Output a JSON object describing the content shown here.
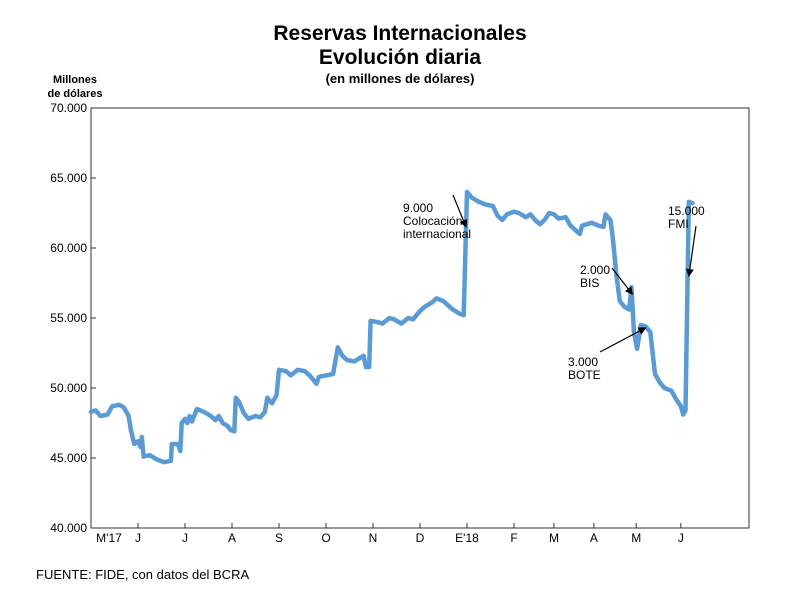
{
  "title": "Reservas Internacionales",
  "subtitle": "Evolución diaria",
  "subtitle2": "(en millones de dólares)",
  "ylabel_line1": "Millones",
  "ylabel_line2": "de dólares",
  "source": "FUENTE: FIDE, con datos del BCRA",
  "chart_data": {
    "type": "line",
    "title": "Reservas Internacionales",
    "ylabel": "Millones de dólares",
    "ylim": [
      40000,
      70000
    ],
    "yticks": [
      {
        "v": 40000,
        "label": "40.000"
      },
      {
        "v": 45000,
        "label": "45.000"
      },
      {
        "v": 50000,
        "label": "50.000"
      },
      {
        "v": 55000,
        "label": "55.000"
      },
      {
        "v": 60000,
        "label": "60.000"
      },
      {
        "v": 65000,
        "label": "65.000"
      },
      {
        "v": 70000,
        "label": "70.000"
      }
    ],
    "xlim": [
      0,
      14
    ],
    "xticks": [
      {
        "x": 0.0,
        "label": "M'17"
      },
      {
        "x": 1.0,
        "label": "J"
      },
      {
        "x": 2.0,
        "label": "J"
      },
      {
        "x": 3.0,
        "label": "A"
      },
      {
        "x": 4.0,
        "label": "S"
      },
      {
        "x": 5.0,
        "label": "O"
      },
      {
        "x": 6.0,
        "label": "N"
      },
      {
        "x": 7.0,
        "label": "D"
      },
      {
        "x": 8.0,
        "label": "E'18"
      },
      {
        "x": 9.0,
        "label": "F"
      },
      {
        "x": 9.85,
        "label": "M"
      },
      {
        "x": 10.7,
        "label": "A"
      },
      {
        "x": 11.6,
        "label": "M"
      },
      {
        "x": 12.55,
        "label": "J"
      }
    ],
    "legend": "none",
    "grid": false,
    "color": "#5b9bd5",
    "series": [
      {
        "points": [
          [
            0.0,
            48300
          ],
          [
            0.1,
            48400
          ],
          [
            0.2,
            48000
          ],
          [
            0.35,
            48100
          ],
          [
            0.45,
            48700
          ],
          [
            0.6,
            48800
          ],
          [
            0.7,
            48600
          ],
          [
            0.8,
            48000
          ],
          [
            0.85,
            47000
          ],
          [
            0.92,
            46000
          ],
          [
            1.0,
            46200
          ],
          [
            1.05,
            45800
          ],
          [
            1.08,
            46500
          ],
          [
            1.12,
            45100
          ],
          [
            1.25,
            45200
          ],
          [
            1.4,
            44900
          ],
          [
            1.55,
            44700
          ],
          [
            1.7,
            44800
          ],
          [
            1.72,
            46000
          ],
          [
            1.85,
            46000
          ],
          [
            1.9,
            45500
          ],
          [
            1.93,
            47500
          ],
          [
            2.0,
            47800
          ],
          [
            2.05,
            47500
          ],
          [
            2.1,
            48000
          ],
          [
            2.15,
            47600
          ],
          [
            2.25,
            48500
          ],
          [
            2.4,
            48300
          ],
          [
            2.55,
            48000
          ],
          [
            2.65,
            47700
          ],
          [
            2.72,
            48000
          ],
          [
            2.8,
            47500
          ],
          [
            2.9,
            47300
          ],
          [
            2.97,
            47000
          ],
          [
            3.05,
            46900
          ],
          [
            3.08,
            49300
          ],
          [
            3.15,
            49000
          ],
          [
            3.25,
            48200
          ],
          [
            3.35,
            47800
          ],
          [
            3.5,
            48000
          ],
          [
            3.6,
            47900
          ],
          [
            3.7,
            48300
          ],
          [
            3.75,
            49300
          ],
          [
            3.85,
            48900
          ],
          [
            3.95,
            49500
          ],
          [
            4.0,
            51300
          ],
          [
            4.15,
            51200
          ],
          [
            4.25,
            50900
          ],
          [
            4.4,
            51300
          ],
          [
            4.55,
            51200
          ],
          [
            4.65,
            50900
          ],
          [
            4.75,
            50500
          ],
          [
            4.8,
            50300
          ],
          [
            4.85,
            50800
          ],
          [
            5.0,
            50900
          ],
          [
            5.15,
            51000
          ],
          [
            5.25,
            52900
          ],
          [
            5.35,
            52300
          ],
          [
            5.45,
            52000
          ],
          [
            5.6,
            51900
          ],
          [
            5.7,
            52100
          ],
          [
            5.8,
            52300
          ],
          [
            5.85,
            51500
          ],
          [
            5.92,
            51500
          ],
          [
            5.95,
            54800
          ],
          [
            6.1,
            54700
          ],
          [
            6.2,
            54600
          ],
          [
            6.35,
            55000
          ],
          [
            6.45,
            54900
          ],
          [
            6.6,
            54600
          ],
          [
            6.75,
            55000
          ],
          [
            6.85,
            54900
          ],
          [
            7.0,
            55500
          ],
          [
            7.1,
            55800
          ],
          [
            7.25,
            56100
          ],
          [
            7.35,
            56400
          ],
          [
            7.5,
            56200
          ],
          [
            7.6,
            55900
          ],
          [
            7.7,
            55600
          ],
          [
            7.85,
            55300
          ],
          [
            7.93,
            55200
          ],
          [
            8.0,
            64000
          ],
          [
            8.1,
            63600
          ],
          [
            8.25,
            63300
          ],
          [
            8.4,
            63100
          ],
          [
            8.55,
            63000
          ],
          [
            8.65,
            62300
          ],
          [
            8.75,
            62000
          ],
          [
            8.85,
            62400
          ],
          [
            9.0,
            62600
          ],
          [
            9.1,
            62500
          ],
          [
            9.25,
            62200
          ],
          [
            9.35,
            62400
          ],
          [
            9.45,
            62000
          ],
          [
            9.55,
            61700
          ],
          [
            9.65,
            62000
          ],
          [
            9.75,
            62500
          ],
          [
            9.85,
            62400
          ],
          [
            9.95,
            62100
          ],
          [
            10.1,
            62200
          ],
          [
            10.2,
            61600
          ],
          [
            10.3,
            61300
          ],
          [
            10.4,
            61000
          ],
          [
            10.45,
            61600
          ],
          [
            10.55,
            61700
          ],
          [
            10.65,
            61800
          ],
          [
            10.8,
            61600
          ],
          [
            10.9,
            61500
          ],
          [
            10.95,
            62400
          ],
          [
            11.05,
            62000
          ],
          [
            11.1,
            60800
          ],
          [
            11.18,
            58000
          ],
          [
            11.25,
            56200
          ],
          [
            11.35,
            55800
          ],
          [
            11.45,
            55600
          ],
          [
            11.5,
            57200
          ],
          [
            11.55,
            54000
          ],
          [
            11.62,
            52800
          ],
          [
            11.7,
            54500
          ],
          [
            11.8,
            54400
          ],
          [
            11.9,
            54000
          ],
          [
            12.0,
            51000
          ],
          [
            12.1,
            50400
          ],
          [
            12.2,
            50000
          ],
          [
            12.35,
            49800
          ],
          [
            12.45,
            49200
          ],
          [
            12.55,
            48700
          ],
          [
            12.6,
            48100
          ],
          [
            12.65,
            48400
          ],
          [
            12.72,
            63300
          ],
          [
            12.8,
            63200
          ]
        ]
      }
    ],
    "annotations": [
      {
        "lines": [
          "9.000",
          "Colocación",
          "internacional"
        ],
        "x": 7.98,
        "y": 61500
      },
      {
        "lines": [
          "2.000",
          "BIS"
        ],
        "x": 11.52,
        "y": 56700
      },
      {
        "lines": [
          "3.000",
          "BOTE"
        ],
        "x": 11.8,
        "y": 54300
      },
      {
        "lines": [
          "15.000",
          "FMI"
        ],
        "x": 12.72,
        "y": 58000
      }
    ]
  }
}
